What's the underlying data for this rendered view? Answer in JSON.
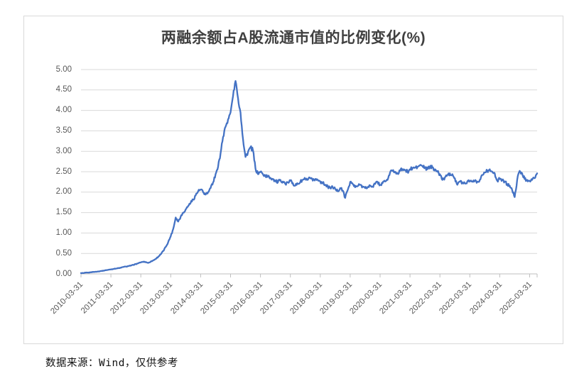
{
  "chart": {
    "border_color": "#d9d9d9",
    "gridline_color": "#d9d9d9",
    "axis_color": "#bfbfbf",
    "label_color": "#595959",
    "title_color": "#404040"
  },
  "chart_data": {
    "type": "line",
    "title": "两融余额占A股流通市值的比例变化(%)",
    "xlabel": "",
    "ylabel": "",
    "ylim": [
      0,
      5
    ],
    "y_tick_step": 0.5,
    "y_tick_labels": [
      "0.00",
      "0.50",
      "1.00",
      "1.50",
      "2.00",
      "2.50",
      "3.00",
      "3.50",
      "4.00",
      "4.50",
      "5.00"
    ],
    "x_tick_labels": [
      "2010-03-31",
      "2011-03-31",
      "2012-03-31",
      "2013-03-31",
      "2014-03-31",
      "2015-03-31",
      "2016-03-31",
      "2017-03-31",
      "2018-03-31",
      "2019-03-31",
      "2020-03-31",
      "2021-03-31",
      "2022-03-31",
      "2023-03-31",
      "2024-03-31",
      "2025-03-31"
    ],
    "grid": "horizontal",
    "legend_position": "none",
    "line_color": "#4472C4",
    "series": [
      {
        "name": "两融余额占A股流通市值的比例(%)",
        "frequency": "monthly",
        "start_month": "2010-03",
        "end_month": "2025-06",
        "values": [
          0.02,
          0.02,
          0.03,
          0.03,
          0.04,
          0.05,
          0.05,
          0.06,
          0.07,
          0.08,
          0.09,
          0.1,
          0.11,
          0.12,
          0.13,
          0.14,
          0.15,
          0.17,
          0.18,
          0.19,
          0.2,
          0.22,
          0.24,
          0.26,
          0.28,
          0.3,
          0.29,
          0.27,
          0.3,
          0.33,
          0.37,
          0.42,
          0.48,
          0.56,
          0.66,
          0.78,
          0.92,
          1.1,
          1.38,
          1.28,
          1.4,
          1.5,
          1.58,
          1.66,
          1.74,
          1.82,
          1.92,
          2.02,
          2.06,
          2.0,
          1.94,
          2.0,
          2.1,
          2.24,
          2.44,
          2.62,
          2.95,
          3.35,
          3.6,
          3.78,
          3.95,
          4.35,
          4.72,
          4.3,
          3.95,
          3.3,
          2.86,
          2.98,
          3.1,
          3.02,
          2.58,
          2.44,
          2.5,
          2.44,
          2.4,
          2.38,
          2.35,
          2.32,
          2.28,
          2.24,
          2.3,
          2.26,
          2.2,
          2.24,
          2.28,
          2.22,
          2.16,
          2.2,
          2.25,
          2.3,
          2.33,
          2.3,
          2.34,
          2.28,
          2.32,
          2.3,
          2.26,
          2.22,
          2.18,
          2.14,
          2.1,
          2.12,
          2.08,
          2.02,
          2.1,
          2.04,
          1.86,
          2.05,
          2.25,
          2.2,
          2.12,
          2.15,
          2.18,
          2.14,
          2.1,
          2.12,
          2.16,
          2.14,
          2.2,
          2.25,
          2.18,
          2.22,
          2.26,
          2.3,
          2.48,
          2.52,
          2.5,
          2.46,
          2.52,
          2.56,
          2.54,
          2.5,
          2.56,
          2.58,
          2.6,
          2.62,
          2.66,
          2.64,
          2.6,
          2.56,
          2.62,
          2.6,
          2.56,
          2.5,
          2.44,
          2.3,
          2.36,
          2.42,
          2.46,
          2.44,
          2.34,
          2.18,
          2.26,
          2.24,
          2.22,
          2.26,
          2.28,
          2.26,
          2.28,
          2.26,
          2.3,
          2.42,
          2.48,
          2.52,
          2.56,
          2.5,
          2.46,
          2.28,
          2.32,
          2.3,
          2.26,
          2.2,
          2.16,
          2.05,
          1.88,
          2.3,
          2.52,
          2.46,
          2.32,
          2.3,
          2.28,
          2.3,
          2.34,
          2.46
        ]
      }
    ]
  },
  "footer": {
    "text": "数据来源：Wind，仅供参考"
  }
}
